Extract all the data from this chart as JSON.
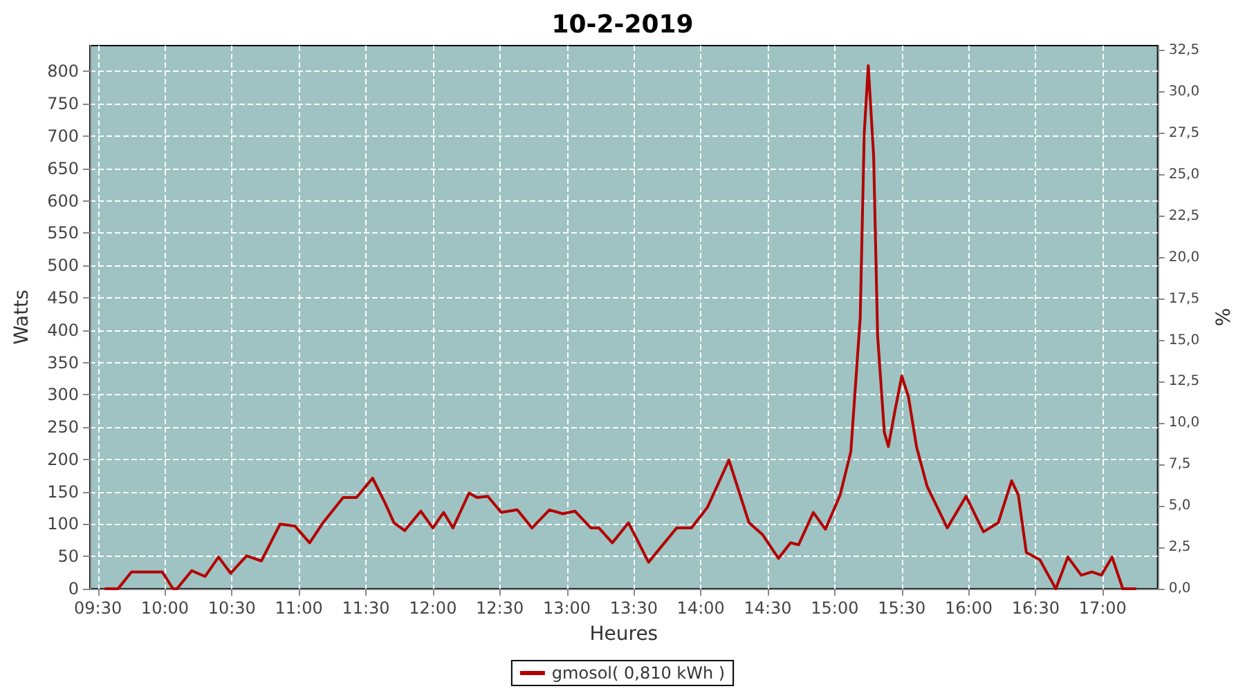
{
  "chart_data": {
    "type": "line",
    "title": "10-2-2019",
    "xlabel": "Heures",
    "ylabel": "Watts",
    "y2label": "%",
    "x": [
      9.55,
      9.65,
      9.75,
      9.98,
      10.06,
      10.09,
      10.2,
      10.3,
      10.4,
      10.49,
      10.61,
      10.72,
      10.86,
      10.97,
      11.08,
      11.18,
      11.33,
      11.43,
      11.55,
      11.64,
      11.71,
      11.79,
      11.91,
      12.0,
      12.08,
      12.15,
      12.27,
      12.33,
      12.41,
      12.51,
      12.63,
      12.74,
      12.87,
      12.97,
      13.06,
      13.18,
      13.24,
      13.34,
      13.46,
      13.61,
      13.82,
      13.93,
      14.05,
      14.21,
      14.36,
      14.46,
      14.58,
      14.67,
      14.73,
      14.84,
      14.93,
      15.04,
      15.12,
      15.19,
      15.22,
      15.25,
      15.29,
      15.32,
      15.37,
      15.4,
      15.45,
      15.5,
      15.55,
      15.61,
      15.69,
      15.84,
      15.98,
      16.11,
      16.22,
      16.32,
      16.37,
      16.43,
      16.53,
      16.65,
      16.74,
      16.84,
      16.92,
      16.99,
      17.07,
      17.15,
      17.25
    ],
    "series": [
      {
        "name": "gmosol( 0,810 kWh )",
        "color": "#b40000",
        "values": [
          0,
          0,
          26,
          26,
          0,
          0,
          28,
          19,
          49,
          24,
          51,
          43,
          100,
          97,
          71,
          102,
          141,
          141,
          171,
          134,
          102,
          90,
          120,
          94,
          118,
          94,
          148,
          141,
          143,
          118,
          122,
          94,
          122,
          116,
          120,
          94,
          94,
          71,
          102,
          41,
          94,
          94,
          126,
          199,
          102,
          84,
          47,
          71,
          68,
          118,
          92,
          145,
          212,
          419,
          704,
          809,
          670,
          391,
          242,
          220,
          276,
          329,
          297,
          220,
          158,
          94,
          143,
          88,
          102,
          167,
          145,
          56,
          45,
          0,
          49,
          21,
          26,
          21,
          49,
          0,
          0
        ]
      }
    ],
    "xlim": [
      9.44,
      17.41
    ],
    "xticks": [
      {
        "value": 9.5,
        "label": "09:30"
      },
      {
        "value": 10,
        "label": "10:00"
      },
      {
        "value": 10.5,
        "label": "10:30"
      },
      {
        "value": 11,
        "label": "11:00"
      },
      {
        "value": 11.5,
        "label": "11:30"
      },
      {
        "value": 12,
        "label": "12:00"
      },
      {
        "value": 12.5,
        "label": "12:30"
      },
      {
        "value": 13,
        "label": "13:00"
      },
      {
        "value": 13.5,
        "label": "13:30"
      },
      {
        "value": 14,
        "label": "14:00"
      },
      {
        "value": 14.5,
        "label": "14:30"
      },
      {
        "value": 15,
        "label": "15:00"
      },
      {
        "value": 15.5,
        "label": "15:30"
      },
      {
        "value": 16,
        "label": "16:00"
      },
      {
        "value": 16.5,
        "label": "16:30"
      },
      {
        "value": 17,
        "label": "17:00"
      }
    ],
    "ylim": [
      0,
      840
    ],
    "yticks": [
      0,
      50,
      100,
      150,
      200,
      250,
      300,
      350,
      400,
      450,
      500,
      550,
      600,
      650,
      700,
      750,
      800
    ],
    "y2lim": [
      0,
      32.8
    ],
    "y2ticks": [
      {
        "value": 0,
        "label": "0,0"
      },
      {
        "value": 2.5,
        "label": "2,5"
      },
      {
        "value": 5,
        "label": "5,0"
      },
      {
        "value": 7.5,
        "label": "7,5"
      },
      {
        "value": 10,
        "label": "10,0"
      },
      {
        "value": 12.5,
        "label": "12,5"
      },
      {
        "value": 15,
        "label": "15,0"
      },
      {
        "value": 17.5,
        "label": "17,5"
      },
      {
        "value": 20,
        "label": "20,0"
      },
      {
        "value": 22.5,
        "label": "22,5"
      },
      {
        "value": 25,
        "label": "25,0"
      },
      {
        "value": 27.5,
        "label": "27,5"
      },
      {
        "value": 30,
        "label": "30,0"
      },
      {
        "value": 32.5,
        "label": "32,5"
      }
    ],
    "grid": true,
    "legend": "bottom",
    "marker": "none",
    "line_style": "solid"
  }
}
